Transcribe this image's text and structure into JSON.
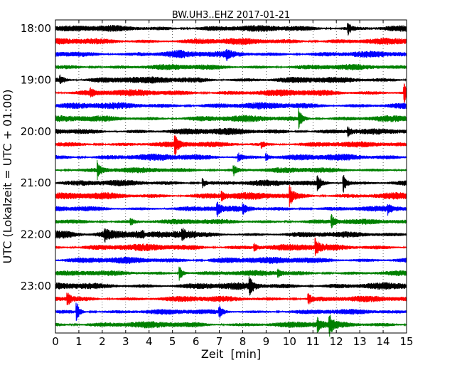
{
  "chart_data": {
    "type": "line",
    "title": "BW.UH3..EHZ 2017-01-21",
    "xlabel": "Zeit  [min]",
    "ylabel": "UTC (Lokalzeit = UTC + 01:00)",
    "xlim": [
      0,
      15
    ],
    "x_ticks": [
      "0",
      "1",
      "2",
      "3",
      "4",
      "5",
      "6",
      "7",
      "8",
      "9",
      "10",
      "11",
      "12",
      "13",
      "14",
      "15"
    ],
    "y_tick_labels": [
      "18:00",
      "19:00",
      "20:00",
      "21:00",
      "22:00",
      "23:00"
    ],
    "grid": "x-dotted",
    "trace_colors": [
      "#000000",
      "#ff0000",
      "#0000ff",
      "#008000"
    ],
    "traces_per_hour": 4,
    "trace_count": 24,
    "trace_interval_min": 15,
    "events": [
      {
        "trace": 0,
        "minute": 12.5,
        "strength": 0.8
      },
      {
        "trace": 2,
        "minute": 7.3,
        "strength": 0.6
      },
      {
        "trace": 4,
        "minute": 0.2,
        "strength": 0.5
      },
      {
        "trace": 5,
        "minute": 14.9,
        "strength": 1.4
      },
      {
        "trace": 5,
        "minute": 1.5,
        "strength": 0.4
      },
      {
        "trace": 7,
        "minute": 10.4,
        "strength": 1.3
      },
      {
        "trace": 8,
        "minute": 12.5,
        "strength": 0.6
      },
      {
        "trace": 9,
        "minute": 5.1,
        "strength": 1.3
      },
      {
        "trace": 9,
        "minute": 8.8,
        "strength": 0.4
      },
      {
        "trace": 10,
        "minute": 7.8,
        "strength": 0.6
      },
      {
        "trace": 10,
        "minute": 9.0,
        "strength": 0.5
      },
      {
        "trace": 11,
        "minute": 1.8,
        "strength": 1.1
      },
      {
        "trace": 11,
        "minute": 7.6,
        "strength": 0.7
      },
      {
        "trace": 12,
        "minute": 6.3,
        "strength": 0.6
      },
      {
        "trace": 12,
        "minute": 11.2,
        "strength": 0.9
      },
      {
        "trace": 12,
        "minute": 12.3,
        "strength": 1.3
      },
      {
        "trace": 13,
        "minute": 10.0,
        "strength": 1.5
      },
      {
        "trace": 13,
        "minute": 7.1,
        "strength": 0.5
      },
      {
        "trace": 14,
        "minute": 6.9,
        "strength": 1.0
      },
      {
        "trace": 14,
        "minute": 8.0,
        "strength": 0.6
      },
      {
        "trace": 14,
        "minute": 14.2,
        "strength": 0.6
      },
      {
        "trace": 15,
        "minute": 11.8,
        "strength": 0.8
      },
      {
        "trace": 15,
        "minute": 3.2,
        "strength": 0.5
      },
      {
        "trace": 16,
        "minute": 2.1,
        "strength": 0.8
      },
      {
        "trace": 16,
        "minute": 5.4,
        "strength": 0.8
      },
      {
        "trace": 17,
        "minute": 11.1,
        "strength": 1.1
      },
      {
        "trace": 17,
        "minute": 8.5,
        "strength": 0.5
      },
      {
        "trace": 19,
        "minute": 5.3,
        "strength": 1.2
      },
      {
        "trace": 19,
        "minute": 9.5,
        "strength": 0.5
      },
      {
        "trace": 20,
        "minute": 8.3,
        "strength": 1.3
      },
      {
        "trace": 21,
        "minute": 0.5,
        "strength": 0.9
      },
      {
        "trace": 21,
        "minute": 10.8,
        "strength": 0.8
      },
      {
        "trace": 22,
        "minute": 0.9,
        "strength": 1.4
      },
      {
        "trace": 22,
        "minute": 7.0,
        "strength": 0.8
      },
      {
        "trace": 23,
        "minute": 11.7,
        "strength": 1.4
      },
      {
        "trace": 23,
        "minute": 11.2,
        "strength": 0.9
      }
    ],
    "noisy_segments": [
      {
        "trace": 4,
        "from": 0,
        "to": 3.5,
        "gain": 1.3
      },
      {
        "trace": 8,
        "from": 3,
        "to": 10,
        "gain": 1.2
      },
      {
        "trace": 16,
        "from": 0,
        "to": 3.8,
        "gain": 2.2
      },
      {
        "trace": 16,
        "from": 5.0,
        "to": 6.0,
        "gain": 1.5
      },
      {
        "trace": 18,
        "from": 6.5,
        "to": 8.5,
        "gain": 1.4
      },
      {
        "trace": 2,
        "from": 3.5,
        "to": 5.5,
        "gain": 1.5
      }
    ]
  }
}
